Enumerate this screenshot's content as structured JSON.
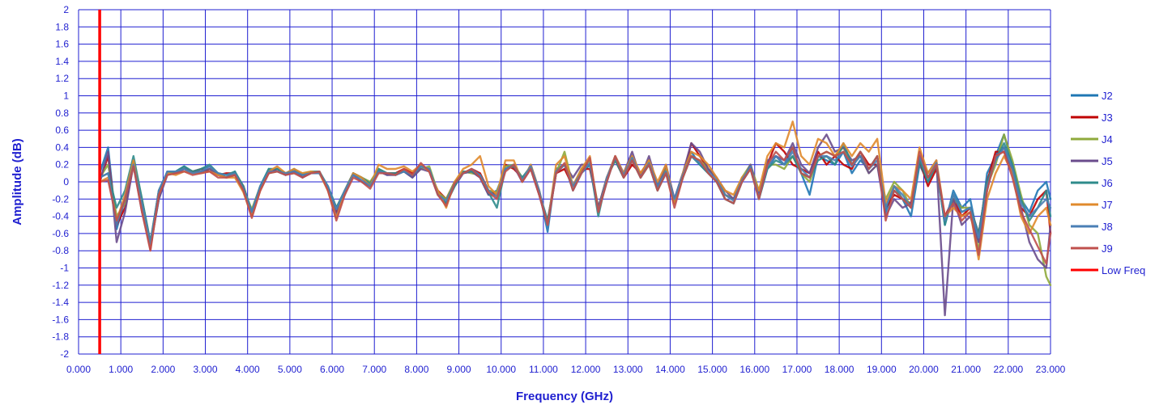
{
  "chart_data": {
    "type": "line",
    "title": "",
    "xlabel": "Frequency (GHz)",
    "ylabel": "Amplitude (dB)",
    "xlim": [
      0,
      23
    ],
    "ylim": [
      -2,
      2
    ],
    "x_ticks": [
      "0.000",
      "1.000",
      "2.000",
      "3.000",
      "4.000",
      "5.000",
      "6.000",
      "7.000",
      "8.000",
      "9.000",
      "10.000",
      "11.000",
      "12.000",
      "13.000",
      "14.000",
      "15.000",
      "16.000",
      "17.000",
      "18.000",
      "19.000",
      "20.000",
      "21.000",
      "22.000",
      "23.000"
    ],
    "y_ticks": [
      "2",
      "1.8",
      "1.6",
      "1.4",
      "1.2",
      "1",
      "0.8",
      "0.6",
      "0.4",
      "0.2",
      "0",
      "-0.2",
      "-0.4",
      "-0.6",
      "-0.8",
      "-1",
      "-1.2",
      "-1.4",
      "-1.6",
      "-1.8",
      "-2"
    ],
    "grid": true,
    "grid_color": "#1f1fd0",
    "legend_position": "right",
    "x": [
      0.5,
      0.7,
      0.9,
      1.1,
      1.3,
      1.5,
      1.7,
      1.9,
      2.1,
      2.3,
      2.5,
      2.7,
      2.9,
      3.1,
      3.3,
      3.5,
      3.7,
      3.9,
      4.1,
      4.3,
      4.5,
      4.7,
      4.9,
      5.1,
      5.3,
      5.5,
      5.7,
      5.9,
      6.1,
      6.3,
      6.5,
      6.7,
      6.9,
      7.1,
      7.3,
      7.5,
      7.7,
      7.9,
      8.1,
      8.3,
      8.5,
      8.7,
      8.9,
      9.1,
      9.3,
      9.5,
      9.7,
      9.9,
      10.1,
      10.3,
      10.5,
      10.7,
      10.9,
      11.1,
      11.3,
      11.5,
      11.7,
      11.9,
      12.1,
      12.3,
      12.5,
      12.7,
      12.9,
      13.1,
      13.3,
      13.5,
      13.7,
      13.9,
      14.1,
      14.3,
      14.5,
      14.7,
      14.9,
      15.1,
      15.3,
      15.5,
      15.7,
      15.9,
      16.1,
      16.3,
      16.5,
      16.7,
      16.9,
      17.1,
      17.3,
      17.5,
      17.7,
      17.9,
      18.1,
      18.3,
      18.5,
      18.7,
      18.9,
      19.1,
      19.3,
      19.5,
      19.7,
      19.9,
      20.1,
      20.3,
      20.5,
      20.7,
      20.9,
      21.1,
      21.3,
      21.5,
      21.7,
      21.9,
      22.1,
      22.3,
      22.5,
      22.7,
      22.9,
      23.0
    ],
    "series": [
      {
        "name": "J2",
        "color": "#1f77b4",
        "values": [
          0.1,
          0.4,
          -0.55,
          -0.2,
          0.25,
          -0.3,
          -0.75,
          -0.2,
          0.1,
          0.12,
          0.18,
          0.1,
          0.15,
          0.18,
          0.1,
          0.05,
          0.12,
          -0.1,
          -0.38,
          -0.05,
          0.15,
          0.12,
          0.08,
          0.15,
          0.05,
          0.12,
          0.1,
          -0.05,
          -0.3,
          -0.15,
          0.1,
          0.0,
          -0.05,
          0.15,
          0.08,
          0.1,
          0.12,
          0.05,
          0.18,
          0.15,
          -0.15,
          -0.25,
          -0.05,
          0.1,
          0.12,
          0.05,
          -0.15,
          -0.1,
          0.15,
          0.2,
          0.0,
          0.2,
          -0.1,
          -0.58,
          0.15,
          0.2,
          -0.1,
          0.1,
          0.2,
          -0.35,
          0.0,
          0.3,
          0.1,
          0.25,
          0.05,
          0.2,
          -0.1,
          0.1,
          -0.2,
          0.1,
          0.35,
          0.2,
          0.1,
          0.0,
          -0.2,
          -0.25,
          0.0,
          0.2,
          -0.2,
          0.15,
          0.3,
          0.2,
          0.4,
          0.1,
          -0.15,
          0.3,
          0.25,
          0.2,
          0.35,
          0.1,
          0.25,
          0.15,
          0.3,
          -0.35,
          -0.1,
          -0.2,
          -0.4,
          0.2,
          0.0,
          0.2,
          -0.5,
          -0.1,
          -0.3,
          -0.2,
          -0.7,
          0.1,
          0.3,
          0.55,
          0.2,
          -0.2,
          -0.35,
          -0.1,
          0.0,
          -0.2
        ]
      },
      {
        "name": "J3",
        "color": "#c00000",
        "values": [
          0.0,
          0.3,
          -0.5,
          -0.3,
          0.2,
          -0.3,
          -0.78,
          -0.15,
          0.12,
          0.1,
          0.15,
          0.12,
          0.15,
          0.12,
          0.08,
          0.1,
          0.1,
          -0.05,
          -0.35,
          -0.1,
          0.12,
          0.15,
          0.1,
          0.12,
          0.08,
          0.1,
          0.12,
          -0.1,
          -0.35,
          -0.1,
          0.1,
          0.05,
          -0.05,
          0.12,
          0.1,
          0.1,
          0.15,
          0.1,
          0.2,
          0.12,
          -0.1,
          -0.2,
          0.0,
          0.1,
          0.15,
          0.1,
          -0.1,
          -0.15,
          0.2,
          0.15,
          0.05,
          0.15,
          -0.15,
          -0.45,
          0.1,
          0.15,
          -0.05,
          0.15,
          0.15,
          -0.3,
          0.05,
          0.25,
          0.05,
          0.2,
          0.1,
          0.25,
          -0.05,
          0.15,
          -0.25,
          0.05,
          0.45,
          0.3,
          0.15,
          0.05,
          -0.15,
          -0.2,
          0.05,
          0.15,
          -0.15,
          0.2,
          0.45,
          0.35,
          0.2,
          0.15,
          0.1,
          0.35,
          0.2,
          0.3,
          0.2,
          0.15,
          0.35,
          0.2,
          0.2,
          -0.3,
          -0.15,
          -0.2,
          -0.25,
          0.25,
          -0.05,
          0.15,
          -0.4,
          -0.2,
          -0.4,
          -0.3,
          -0.6,
          0.0,
          0.35,
          0.35,
          0.15,
          -0.3,
          -0.4,
          -0.2,
          -0.1,
          -0.6
        ]
      },
      {
        "name": "J4",
        "color": "#8faa3c",
        "values": [
          0.05,
          0.2,
          -0.4,
          -0.25,
          0.25,
          -0.2,
          -0.7,
          -0.1,
          0.1,
          0.1,
          0.15,
          0.1,
          0.12,
          0.15,
          0.1,
          0.08,
          0.1,
          -0.08,
          -0.32,
          -0.05,
          0.1,
          0.12,
          0.1,
          0.1,
          0.1,
          0.12,
          0.1,
          -0.05,
          -0.3,
          -0.1,
          0.1,
          0.05,
          0.0,
          0.15,
          0.1,
          0.08,
          0.12,
          0.08,
          0.15,
          0.18,
          -0.12,
          -0.2,
          0.0,
          0.12,
          0.1,
          0.08,
          -0.1,
          -0.12,
          0.18,
          0.2,
          0.05,
          0.15,
          -0.1,
          -0.5,
          0.1,
          0.35,
          -0.05,
          0.15,
          0.25,
          -0.3,
          0.05,
          0.25,
          0.1,
          0.3,
          0.05,
          0.25,
          -0.05,
          0.15,
          -0.2,
          0.05,
          0.3,
          0.25,
          0.15,
          0.05,
          -0.15,
          -0.2,
          0.05,
          0.2,
          -0.1,
          0.2,
          0.2,
          0.15,
          0.3,
          0.1,
          0.0,
          0.3,
          0.35,
          0.3,
          0.4,
          0.2,
          0.3,
          0.1,
          0.2,
          -0.2,
          0.0,
          -0.1,
          -0.3,
          0.3,
          0.05,
          0.2,
          -0.45,
          -0.2,
          -0.3,
          -0.3,
          -0.8,
          -0.05,
          0.2,
          0.55,
          0.25,
          -0.15,
          -0.5,
          -0.6,
          -1.1,
          -1.2
        ]
      },
      {
        "name": "J5",
        "color": "#6a4c8c",
        "values": [
          0.0,
          0.35,
          -0.7,
          -0.35,
          0.2,
          -0.35,
          -0.75,
          -0.2,
          0.08,
          0.1,
          0.15,
          0.1,
          0.12,
          0.15,
          0.08,
          0.05,
          0.08,
          -0.1,
          -0.4,
          -0.1,
          0.1,
          0.15,
          0.08,
          0.12,
          0.05,
          0.1,
          0.1,
          -0.08,
          -0.38,
          -0.12,
          0.08,
          0.0,
          -0.05,
          0.12,
          0.08,
          0.08,
          0.12,
          0.05,
          0.15,
          0.12,
          -0.15,
          -0.25,
          -0.05,
          0.1,
          0.12,
          0.05,
          -0.15,
          -0.15,
          0.15,
          0.18,
          0.0,
          0.15,
          -0.15,
          -0.5,
          0.1,
          0.2,
          0.05,
          0.2,
          0.2,
          -0.3,
          0.05,
          0.3,
          0.1,
          0.35,
          0.05,
          0.3,
          -0.05,
          0.2,
          -0.2,
          0.1,
          0.45,
          0.35,
          0.15,
          0.05,
          -0.1,
          -0.2,
          0.0,
          0.2,
          -0.15,
          0.25,
          0.3,
          0.25,
          0.45,
          0.2,
          0.1,
          0.4,
          0.55,
          0.35,
          0.4,
          0.25,
          0.3,
          0.1,
          0.2,
          -0.4,
          -0.2,
          -0.3,
          -0.25,
          0.3,
          0.1,
          0.25,
          -1.55,
          -0.2,
          -0.5,
          -0.4,
          -0.7,
          -0.1,
          0.3,
          0.4,
          0.1,
          -0.3,
          -0.7,
          -0.9,
          -1.0,
          -0.5
        ]
      },
      {
        "name": "J6",
        "color": "#2e8b8b",
        "values": [
          0.05,
          0.1,
          -0.3,
          -0.1,
          0.3,
          -0.2,
          -0.7,
          -0.1,
          0.12,
          0.12,
          0.18,
          0.12,
          0.15,
          0.2,
          0.1,
          0.08,
          0.12,
          -0.05,
          -0.35,
          -0.05,
          0.15,
          0.15,
          0.1,
          0.15,
          0.08,
          0.12,
          0.12,
          -0.05,
          -0.3,
          -0.1,
          0.1,
          0.05,
          -0.02,
          0.15,
          0.1,
          0.1,
          0.12,
          0.08,
          0.18,
          0.15,
          -0.12,
          -0.25,
          -0.05,
          0.12,
          0.12,
          0.08,
          -0.12,
          -0.3,
          0.15,
          0.18,
          0.05,
          0.18,
          -0.12,
          -0.45,
          0.12,
          0.2,
          -0.05,
          0.12,
          0.2,
          -0.4,
          0.05,
          0.25,
          0.05,
          0.25,
          0.05,
          0.2,
          -0.1,
          0.12,
          -0.25,
          0.05,
          0.3,
          0.2,
          0.1,
          0.0,
          -0.2,
          -0.25,
          0.0,
          0.15,
          -0.2,
          0.15,
          0.25,
          0.2,
          0.3,
          0.1,
          0.05,
          0.25,
          0.3,
          0.2,
          0.45,
          0.2,
          0.35,
          0.15,
          0.3,
          -0.3,
          -0.05,
          -0.2,
          -0.3,
          0.25,
          0.0,
          0.2,
          -0.5,
          -0.15,
          -0.35,
          -0.3,
          -0.6,
          0.0,
          0.25,
          0.45,
          0.2,
          -0.2,
          -0.45,
          -0.3,
          -0.1,
          -0.4
        ]
      },
      {
        "name": "J7",
        "color": "#e08a2c",
        "values": [
          0.0,
          0.05,
          -0.45,
          -0.15,
          0.25,
          -0.3,
          -0.75,
          -0.15,
          0.1,
          0.08,
          0.12,
          0.1,
          0.1,
          0.12,
          0.08,
          0.05,
          0.05,
          -0.12,
          -0.4,
          -0.1,
          0.12,
          0.18,
          0.1,
          0.15,
          0.1,
          0.12,
          0.1,
          -0.1,
          -0.42,
          -0.12,
          0.1,
          0.05,
          -0.05,
          0.2,
          0.15,
          0.15,
          0.18,
          0.12,
          0.2,
          0.12,
          -0.1,
          -0.3,
          0.0,
          0.15,
          0.2,
          0.3,
          -0.05,
          -0.15,
          0.25,
          0.25,
          0.0,
          0.2,
          -0.1,
          -0.5,
          0.2,
          0.3,
          -0.05,
          0.15,
          0.3,
          -0.35,
          0.05,
          0.3,
          0.1,
          0.3,
          0.1,
          0.25,
          0.0,
          0.2,
          -0.25,
          0.1,
          0.35,
          0.3,
          0.2,
          0.05,
          -0.1,
          -0.15,
          0.05,
          0.15,
          -0.1,
          0.3,
          0.45,
          0.4,
          0.7,
          0.3,
          0.2,
          0.5,
          0.45,
          0.3,
          0.45,
          0.3,
          0.45,
          0.35,
          0.5,
          -0.25,
          -0.05,
          -0.1,
          -0.2,
          0.4,
          0.1,
          0.25,
          -0.4,
          -0.3,
          -0.4,
          -0.35,
          -0.9,
          -0.2,
          0.1,
          0.3,
          0.1,
          -0.4,
          -0.6,
          -0.4,
          -0.3,
          -0.5
        ]
      },
      {
        "name": "J8",
        "color": "#4a7fb5",
        "values": [
          0.05,
          0.1,
          -0.5,
          -0.2,
          0.2,
          -0.25,
          -0.72,
          -0.1,
          0.12,
          0.12,
          0.15,
          0.1,
          0.12,
          0.18,
          0.1,
          0.08,
          0.1,
          -0.08,
          -0.35,
          -0.05,
          0.12,
          0.12,
          0.1,
          0.12,
          0.08,
          0.1,
          0.1,
          -0.05,
          -0.32,
          -0.1,
          0.08,
          0.02,
          -0.05,
          0.12,
          0.1,
          0.08,
          0.12,
          0.08,
          0.18,
          0.15,
          -0.15,
          -0.22,
          -0.02,
          0.1,
          0.15,
          0.08,
          -0.1,
          -0.18,
          0.15,
          0.2,
          0.02,
          0.18,
          -0.1,
          -0.5,
          0.12,
          0.2,
          -0.05,
          0.1,
          0.22,
          -0.35,
          0.05,
          0.28,
          0.08,
          0.28,
          0.05,
          0.22,
          -0.05,
          0.12,
          -0.2,
          0.08,
          0.3,
          0.22,
          0.12,
          0.02,
          -0.15,
          -0.22,
          0.02,
          0.18,
          -0.18,
          0.18,
          0.3,
          0.2,
          0.35,
          0.15,
          0.05,
          0.3,
          0.3,
          0.25,
          0.35,
          0.18,
          0.3,
          0.15,
          0.25,
          -0.3,
          -0.05,
          -0.15,
          -0.3,
          0.3,
          0.05,
          0.22,
          -0.45,
          -0.15,
          -0.35,
          -0.3,
          -0.65,
          -0.05,
          0.25,
          0.4,
          0.15,
          -0.25,
          -0.4,
          -0.3,
          -0.2,
          -0.3
        ]
      },
      {
        "name": "J9",
        "color": "#c0504d",
        "values": [
          0.0,
          0.02,
          -0.45,
          -0.2,
          0.18,
          -0.35,
          -0.8,
          -0.15,
          0.08,
          0.1,
          0.12,
          0.08,
          0.1,
          0.12,
          0.05,
          0.05,
          0.08,
          -0.1,
          -0.42,
          -0.1,
          0.1,
          0.12,
          0.08,
          0.1,
          0.05,
          0.1,
          0.12,
          -0.1,
          -0.45,
          -0.15,
          0.05,
          0.0,
          -0.08,
          0.1,
          0.1,
          0.08,
          0.15,
          0.08,
          0.22,
          0.12,
          -0.15,
          -0.28,
          -0.02,
          0.1,
          0.15,
          0.05,
          -0.12,
          -0.2,
          0.12,
          0.2,
          0.0,
          0.15,
          -0.15,
          -0.5,
          0.1,
          0.22,
          -0.1,
          0.1,
          0.28,
          -0.35,
          0.0,
          0.3,
          0.05,
          0.25,
          0.05,
          0.2,
          -0.1,
          0.1,
          -0.3,
          0.05,
          0.3,
          0.25,
          0.1,
          0.0,
          -0.2,
          -0.25,
          0.0,
          0.15,
          -0.2,
          0.2,
          0.35,
          0.25,
          0.4,
          0.1,
          0.05,
          0.3,
          0.35,
          0.3,
          0.35,
          0.2,
          0.35,
          0.15,
          0.3,
          -0.45,
          -0.1,
          -0.2,
          -0.3,
          0.35,
          0.05,
          0.2,
          -0.4,
          -0.25,
          -0.45,
          -0.35,
          -0.85,
          -0.1,
          0.3,
          0.35,
          0.05,
          -0.35,
          -0.55,
          -0.75,
          -0.95,
          -0.6
        ]
      }
    ],
    "markers": [
      {
        "name": "Low Freq",
        "color": "#ff0000",
        "x": 0.5
      }
    ]
  }
}
